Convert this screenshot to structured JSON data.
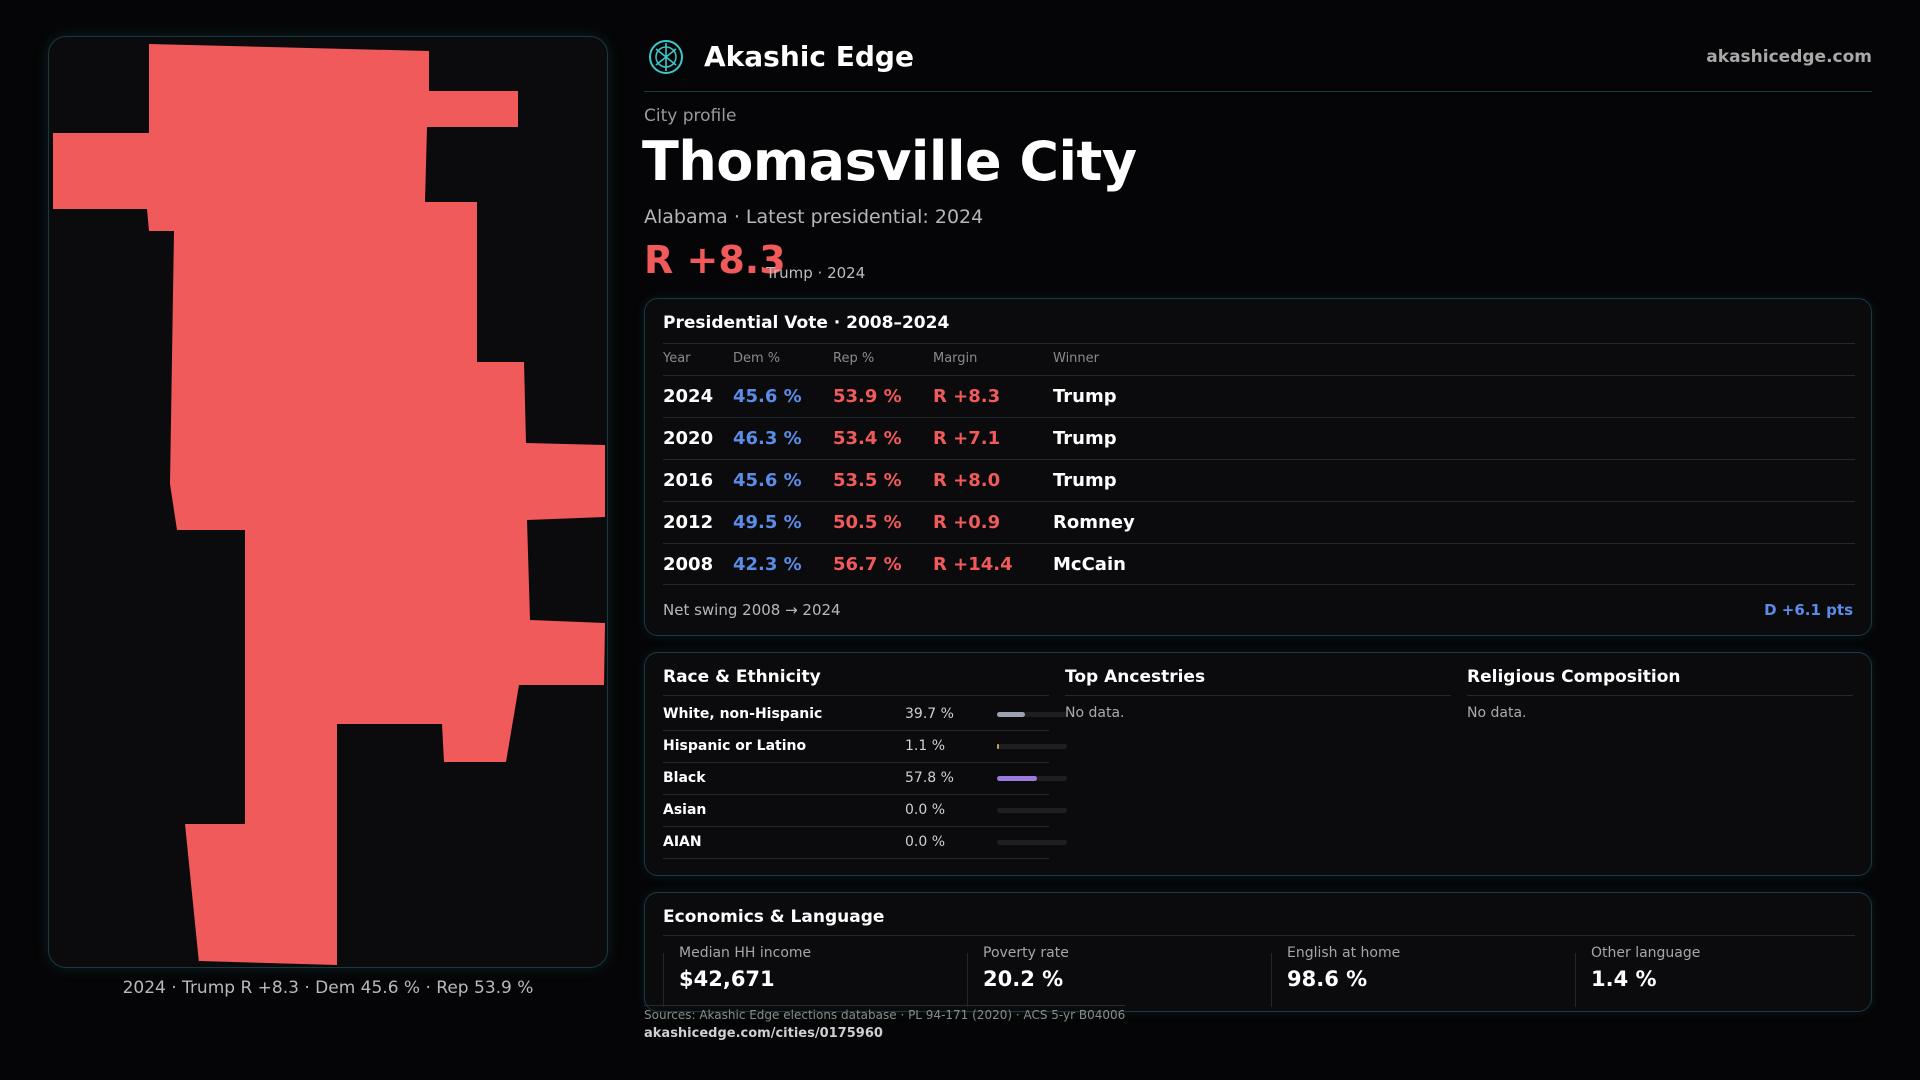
{
  "map": {
    "caption": "2024 · Trump R +8.3 · Dem 45.6 % · Rep 53.9 %",
    "fill_color": "#f05a5a"
  },
  "header": {
    "brand": "Akashic Edge",
    "site": "akashicedge.com",
    "logo_icon": "compass-globe-icon"
  },
  "profile": {
    "kicker": "City profile",
    "city": "Thomasville City",
    "subtitle": "Alabama · Latest presidential: 2024",
    "margin": "R +8.3",
    "margin_note": "Trump · 2024"
  },
  "vote": {
    "title": "Presidential Vote · 2008–2024",
    "headers": {
      "year": "Year",
      "dem": "Dem %",
      "rep": "Rep %",
      "margin": "Margin",
      "winner": "Winner"
    },
    "rows": [
      {
        "year": "2024",
        "dem": "45.6 %",
        "rep": "53.9 %",
        "margin": "R +8.3",
        "winner": "Trump"
      },
      {
        "year": "2020",
        "dem": "46.3 %",
        "rep": "53.4 %",
        "margin": "R +7.1",
        "winner": "Trump"
      },
      {
        "year": "2016",
        "dem": "45.6 %",
        "rep": "53.5 %",
        "margin": "R +8.0",
        "winner": "Trump"
      },
      {
        "year": "2012",
        "dem": "49.5 %",
        "rep": "50.5 %",
        "margin": "R +0.9",
        "winner": "Romney"
      },
      {
        "year": "2008",
        "dem": "42.3 %",
        "rep": "56.7 %",
        "margin": "R +14.4",
        "winner": "McCain"
      }
    ],
    "swing_label": "Net swing 2008 → 2024",
    "swing_value": "D +6.1 pts"
  },
  "race": {
    "title": "Race & Ethnicity",
    "rows": [
      {
        "label": "White, non-Hispanic",
        "pct": "39.7 %",
        "fraction": 0.397,
        "color": "#9aa3ad"
      },
      {
        "label": "Hispanic or Latino",
        "pct": "1.1 %",
        "fraction": 0.011,
        "color": "#c9a25a"
      },
      {
        "label": "Black",
        "pct": "57.8 %",
        "fraction": 0.578,
        "color": "#9b7be0"
      },
      {
        "label": "Asian",
        "pct": "0.0 %",
        "fraction": 0.0,
        "color": "#5bc0c0"
      },
      {
        "label": "AIAN",
        "pct": "0.0 %",
        "fraction": 0.0,
        "color": "#c08a5b"
      }
    ]
  },
  "ancestries": {
    "title": "Top Ancestries",
    "empty": "No data."
  },
  "religion": {
    "title": "Religious Composition",
    "empty": "No data."
  },
  "economics": {
    "title": "Economics & Language",
    "items": [
      {
        "label": "Median HH income",
        "value": "$42,671"
      },
      {
        "label": "Poverty rate",
        "value": "20.2 %"
      },
      {
        "label": "English at home",
        "value": "98.6 %"
      },
      {
        "label": "Other language",
        "value": "1.4 %"
      }
    ]
  },
  "footer": {
    "sources": "Sources: Akashic Edge elections database · PL 94-171 (2020) · ACS 5-yr B04006",
    "link": "akashicedge.com/cities/0175960"
  }
}
